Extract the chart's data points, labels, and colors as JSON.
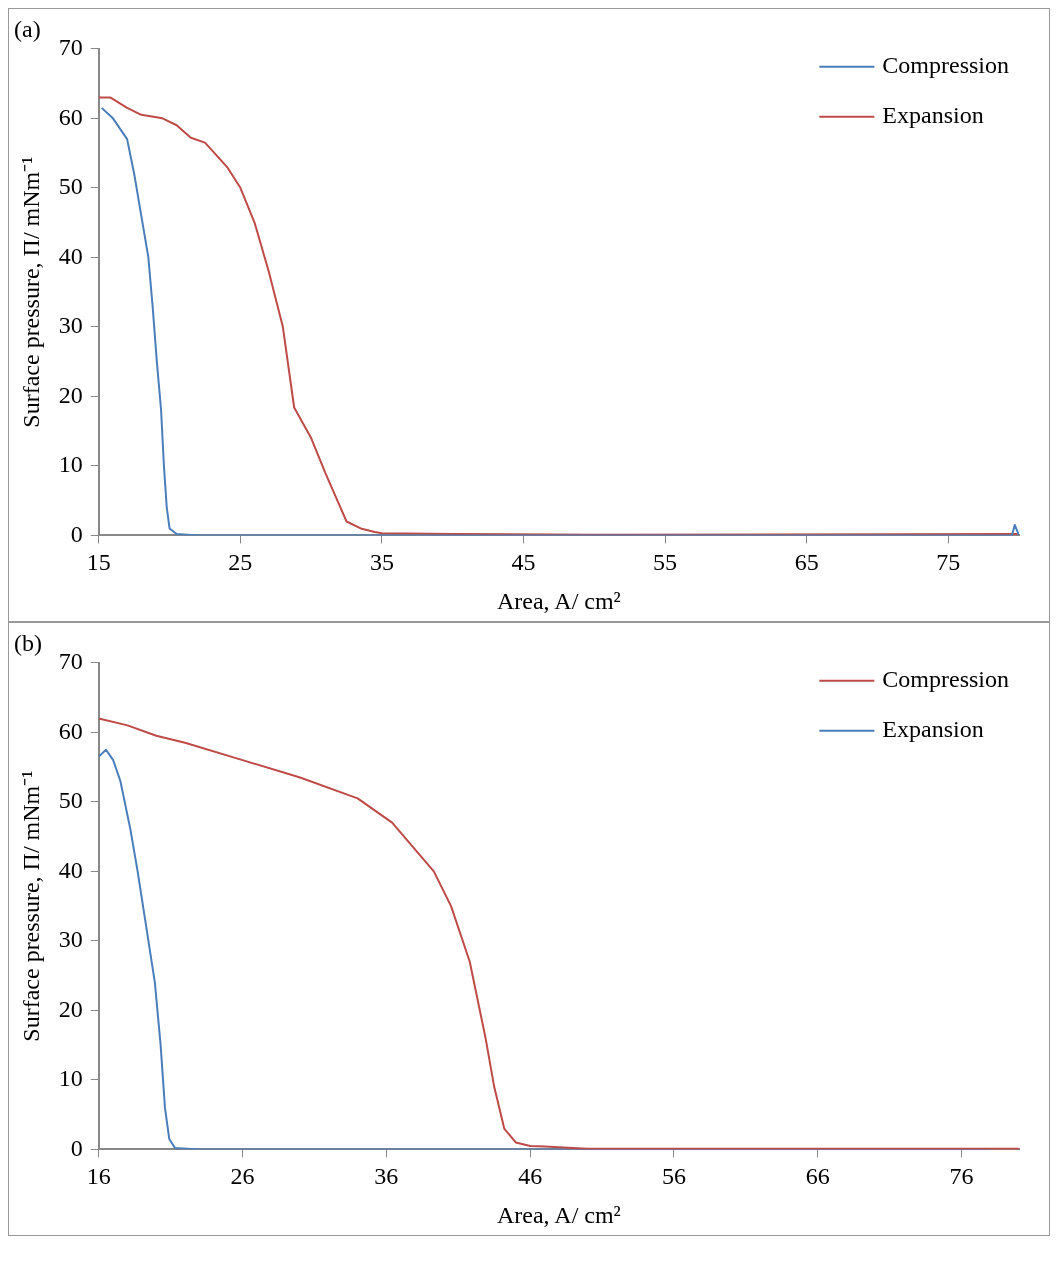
{
  "chart_data": [
    {
      "type": "line",
      "title": "(a)",
      "xlabel": "Area, A/ cm²",
      "ylabel": "Surface pressure, Π/ mNm⁻¹",
      "xlim": [
        15,
        80
      ],
      "xticks": [
        15,
        25,
        35,
        45,
        55,
        65,
        75
      ],
      "ylim": [
        0,
        70
      ],
      "yticks": [
        0,
        10,
        20,
        30,
        40,
        50,
        60,
        70
      ],
      "grid": false,
      "legend": "top right",
      "marker": "none",
      "line_style": "solid",
      "series": [
        {
          "name": "Compression",
          "color": "#4a7ebb",
          "x": [
            15.2,
            16,
            17,
            17.5,
            18,
            18.5,
            18.8,
            19.1,
            19.4,
            19.6,
            19.8,
            20,
            20.5,
            22,
            30,
            50,
            70,
            79.5,
            79.7,
            80
          ],
          "values": [
            61.5,
            60,
            57,
            52,
            46,
            40,
            33,
            25,
            18,
            10,
            4,
            1,
            0.2,
            0,
            0,
            0,
            0,
            0,
            1.5,
            0
          ]
        },
        {
          "name": "Expansion",
          "color": "#be4b48",
          "x": [
            15,
            15.8,
            17,
            18,
            19.5,
            20.5,
            21.5,
            22.5,
            24.1,
            25,
            26,
            27,
            28,
            28.8,
            30,
            31,
            32.5,
            33.5,
            34.5,
            35,
            40,
            50,
            80
          ],
          "values": [
            63,
            63,
            61.5,
            60.5,
            60,
            59,
            57.2,
            56.5,
            52.9,
            50,
            45,
            38,
            30,
            18.4,
            14,
            9,
            2,
            1,
            0.5,
            0.3,
            0.2,
            0.1,
            0.2
          ]
        }
      ]
    },
    {
      "type": "line",
      "title": "(b)",
      "xlabel": "Area, A/ cm²",
      "ylabel": "Surface pressure, Π/ mNm⁻¹",
      "xlim": [
        16,
        80
      ],
      "xticks": [
        16,
        26,
        36,
        46,
        56,
        66,
        76
      ],
      "ylim": [
        0,
        70
      ],
      "yticks": [
        0,
        10,
        20,
        30,
        40,
        50,
        60,
        70
      ],
      "grid": false,
      "legend": "top right",
      "marker": "none",
      "line_style": "solid",
      "series": [
        {
          "name": "Compression",
          "color": "#be4b48",
          "x": [
            16,
            18,
            20,
            22,
            26,
            30,
            34,
            36.4,
            39.3,
            40.5,
            41.8,
            42.9,
            43.5,
            44.2,
            45,
            46,
            47,
            50,
            80
          ],
          "values": [
            62,
            61,
            59.5,
            58.5,
            56,
            53.5,
            50.5,
            47,
            40,
            35,
            27,
            16,
            9,
            3,
            1,
            0.5,
            0.4,
            0.1,
            0.1
          ]
        },
        {
          "name": "Expansion",
          "color": "#4a7ebb",
          "x": [
            16,
            16.5,
            17,
            17.5,
            18.2,
            18.7,
            19.3,
            19.9,
            20.3,
            20.6,
            20.9,
            21.3,
            23,
            40,
            60,
            78
          ],
          "values": [
            56.5,
            57.5,
            56,
            53,
            46,
            40,
            32,
            24,
            15,
            6,
            1.5,
            0.2,
            0,
            0,
            0,
            0
          ]
        }
      ]
    }
  ]
}
